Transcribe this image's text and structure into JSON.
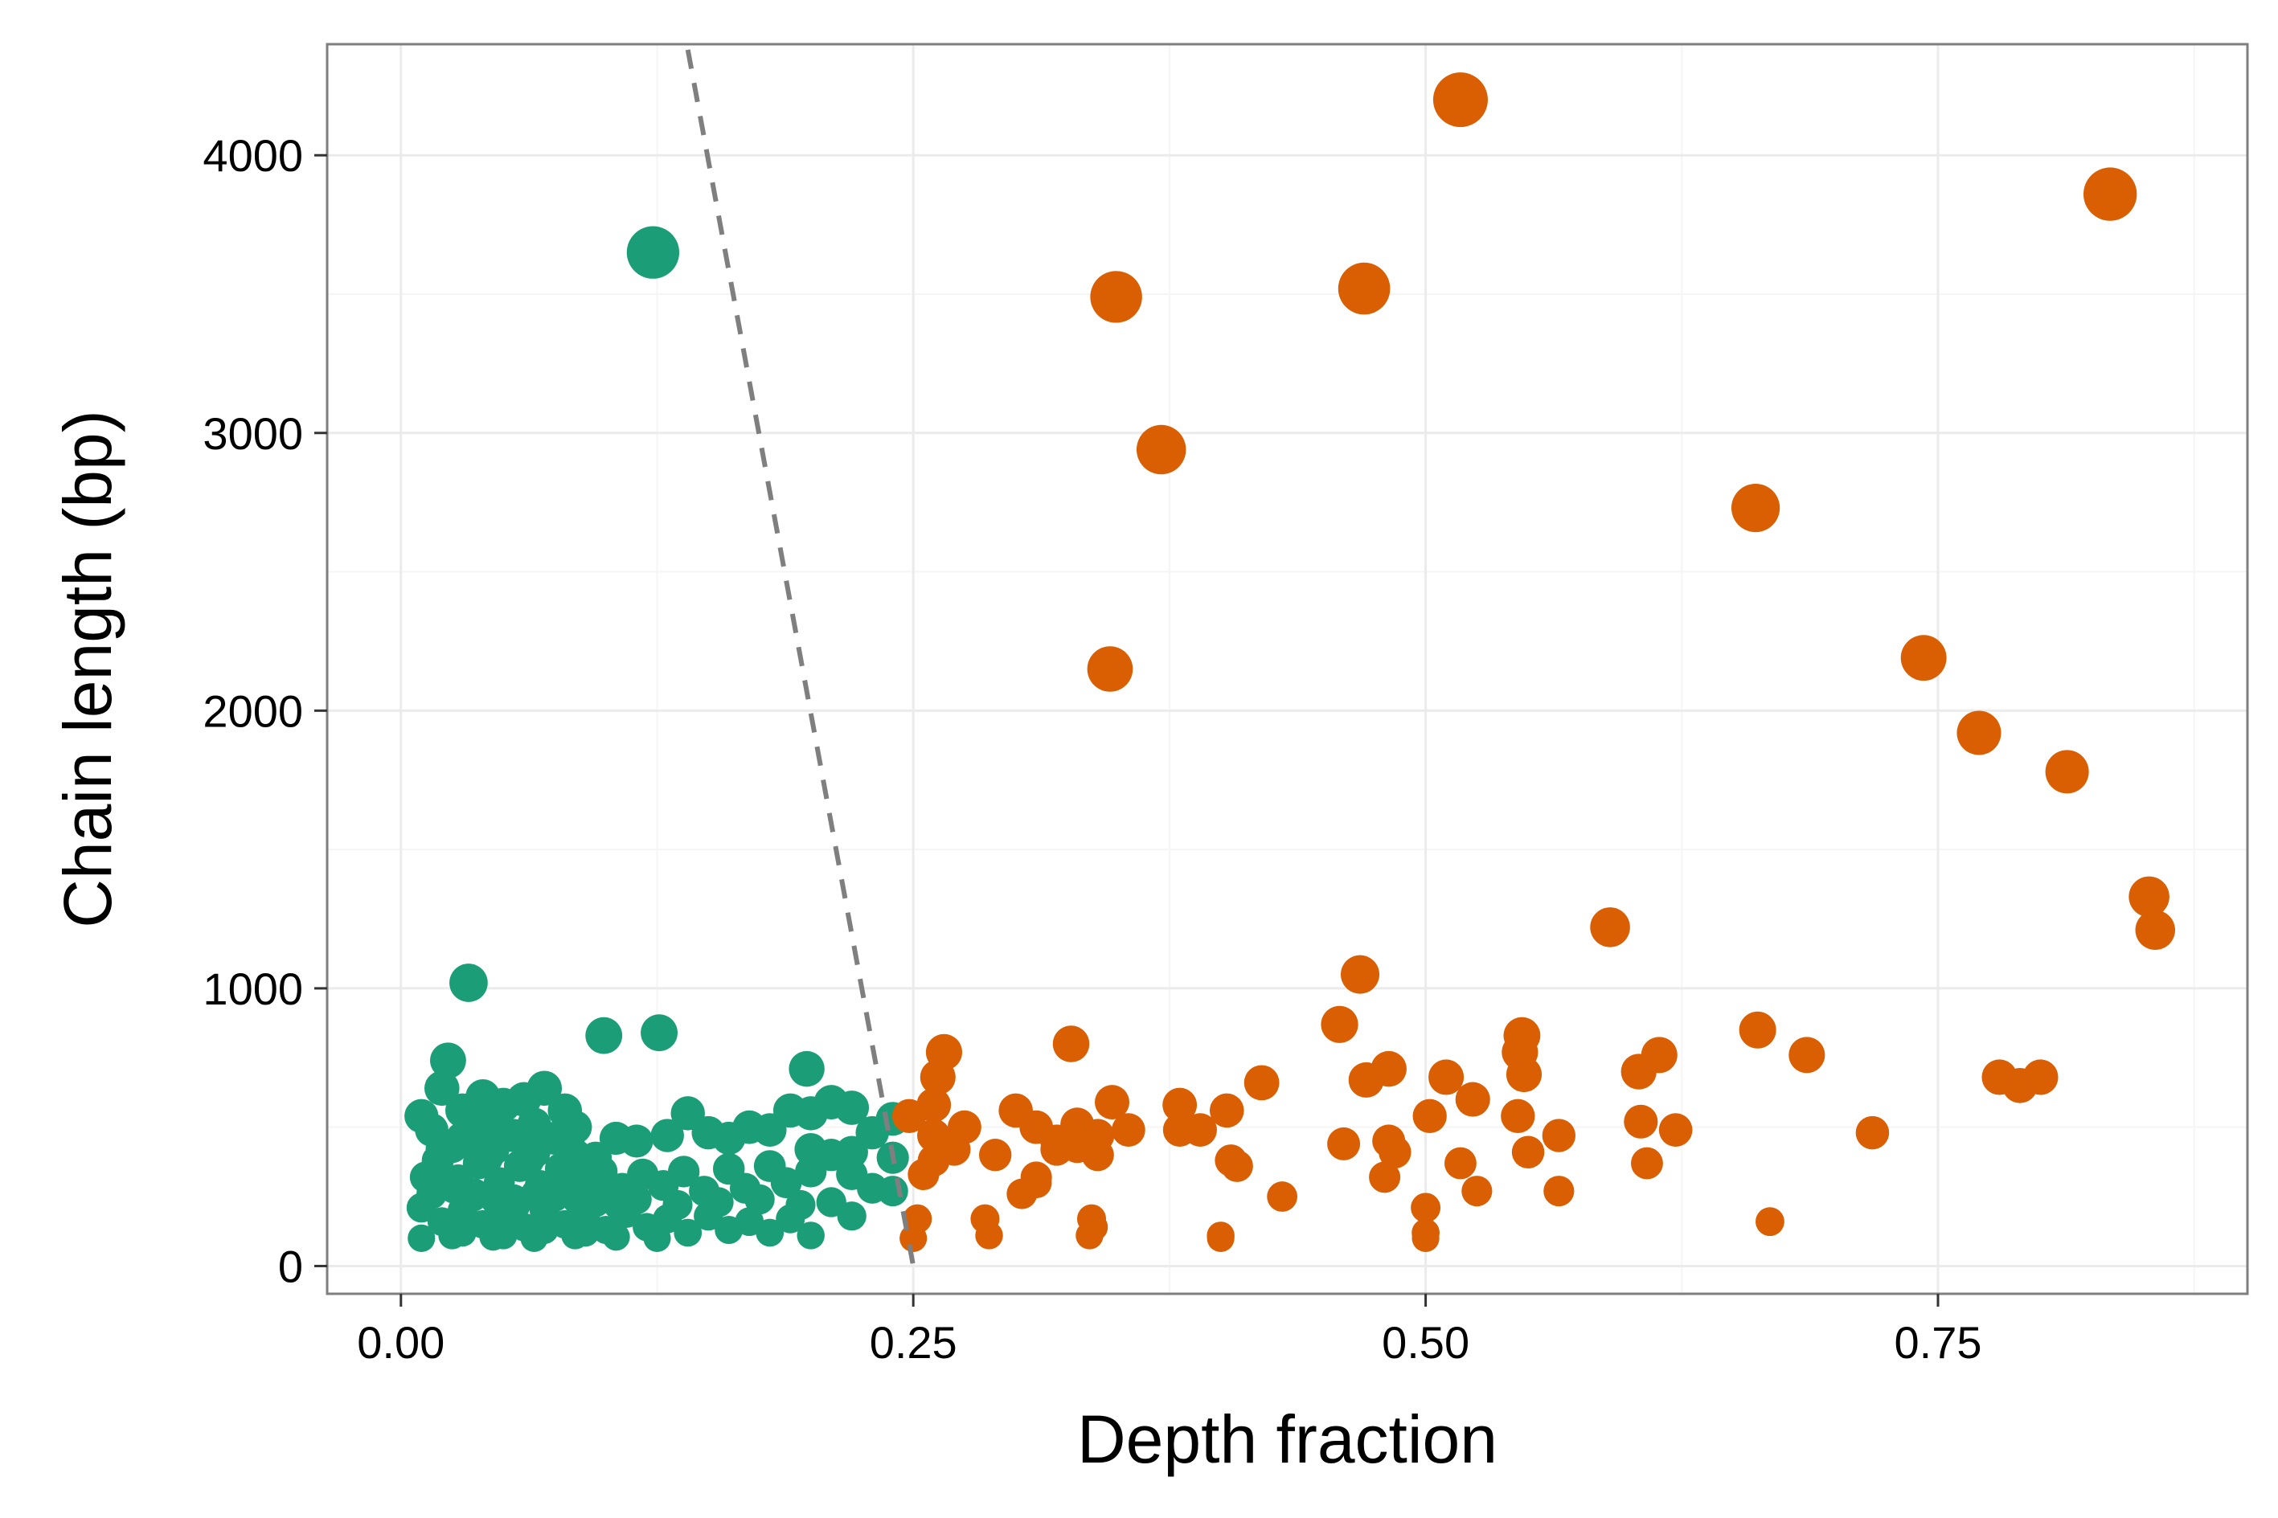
{
  "chart_data": {
    "type": "scatter",
    "xlabel": "Depth fraction",
    "ylabel": "Chain length (bp)",
    "xlim": [
      -0.036,
      0.901
    ],
    "ylim": [
      -100,
      4400
    ],
    "x_ticks": [
      0.0,
      0.25,
      0.5,
      0.75
    ],
    "x_tick_labels": [
      "0.00",
      "0.25",
      "0.50",
      "0.75"
    ],
    "y_ticks": [
      0,
      1000,
      2000,
      3000,
      4000
    ],
    "y_tick_labels": [
      "0",
      "1000",
      "2000",
      "3000",
      "4000"
    ],
    "grid": true,
    "legend": "none",
    "colors": {
      "group_low": "#1b9e77",
      "group_high": "#d95f02",
      "threshold_line": "#7f7f7f",
      "panel_border": "#7f7f7f",
      "grid_major": "#ebebeb",
      "grid_minor": "#f5f5f5"
    },
    "threshold_line": {
      "x": [
        0.14,
        0.25
      ],
      "y": [
        4380,
        0
      ],
      "style": "dashed"
    },
    "series": [
      {
        "color": "#1b9e77",
        "points": [
          [
            0.123,
            3650
          ],
          [
            0.033,
            1020
          ],
          [
            0.099,
            830
          ],
          [
            0.126,
            840
          ],
          [
            0.023,
            740
          ],
          [
            0.198,
            710
          ],
          [
            0.07,
            640
          ],
          [
            0.02,
            640
          ],
          [
            0.04,
            610
          ],
          [
            0.06,
            600
          ],
          [
            0.05,
            580
          ],
          [
            0.08,
            560
          ],
          [
            0.03,
            560
          ],
          [
            0.01,
            540
          ],
          [
            0.14,
            550
          ],
          [
            0.19,
            560
          ],
          [
            0.2,
            550
          ],
          [
            0.21,
            590
          ],
          [
            0.22,
            570
          ],
          [
            0.24,
            530
          ],
          [
            0.045,
            520
          ],
          [
            0.065,
            510
          ],
          [
            0.085,
            500
          ],
          [
            0.015,
            490
          ],
          [
            0.035,
            480
          ],
          [
            0.055,
            470
          ],
          [
            0.075,
            460
          ],
          [
            0.17,
            500
          ],
          [
            0.18,
            490
          ],
          [
            0.23,
            480
          ],
          [
            0.105,
            460
          ],
          [
            0.115,
            450
          ],
          [
            0.13,
            470
          ],
          [
            0.15,
            480
          ],
          [
            0.16,
            460
          ],
          [
            0.025,
            430
          ],
          [
            0.045,
            420
          ],
          [
            0.065,
            410
          ],
          [
            0.085,
            400
          ],
          [
            0.095,
            390
          ],
          [
            0.2,
            420
          ],
          [
            0.21,
            400
          ],
          [
            0.22,
            410
          ],
          [
            0.24,
            390
          ],
          [
            0.018,
            380
          ],
          [
            0.038,
            370
          ],
          [
            0.058,
            360
          ],
          [
            0.078,
            350
          ],
          [
            0.098,
            340
          ],
          [
            0.118,
            330
          ],
          [
            0.138,
            340
          ],
          [
            0.16,
            350
          ],
          [
            0.18,
            360
          ],
          [
            0.2,
            340
          ],
          [
            0.22,
            330
          ],
          [
            0.012,
            320
          ],
          [
            0.028,
            310
          ],
          [
            0.048,
            300
          ],
          [
            0.068,
            290
          ],
          [
            0.088,
            300
          ],
          [
            0.108,
            280
          ],
          [
            0.128,
            290
          ],
          [
            0.148,
            270
          ],
          [
            0.168,
            280
          ],
          [
            0.188,
            300
          ],
          [
            0.23,
            280
          ],
          [
            0.24,
            270
          ],
          [
            0.015,
            260
          ],
          [
            0.035,
            250
          ],
          [
            0.055,
            240
          ],
          [
            0.075,
            250
          ],
          [
            0.095,
            230
          ],
          [
            0.115,
            240
          ],
          [
            0.135,
            220
          ],
          [
            0.155,
            230
          ],
          [
            0.175,
            240
          ],
          [
            0.195,
            220
          ],
          [
            0.21,
            230
          ],
          [
            0.01,
            210
          ],
          [
            0.03,
            200
          ],
          [
            0.05,
            190
          ],
          [
            0.07,
            200
          ],
          [
            0.09,
            180
          ],
          [
            0.11,
            190
          ],
          [
            0.13,
            170
          ],
          [
            0.15,
            180
          ],
          [
            0.17,
            160
          ],
          [
            0.19,
            170
          ],
          [
            0.22,
            180
          ],
          [
            0.02,
            160
          ],
          [
            0.04,
            150
          ],
          [
            0.06,
            140
          ],
          [
            0.08,
            150
          ],
          [
            0.1,
            130
          ],
          [
            0.12,
            140
          ],
          [
            0.14,
            120
          ],
          [
            0.16,
            130
          ],
          [
            0.18,
            120
          ],
          [
            0.2,
            110
          ],
          [
            0.025,
            110
          ],
          [
            0.045,
            105
          ],
          [
            0.065,
            100
          ],
          [
            0.085,
            110
          ],
          [
            0.105,
            105
          ],
          [
            0.125,
            100
          ],
          [
            0.01,
            100
          ],
          [
            0.03,
            120
          ],
          [
            0.05,
            110
          ],
          [
            0.07,
            130
          ],
          [
            0.09,
            120
          ],
          [
            0.016,
            300
          ],
          [
            0.026,
            280
          ],
          [
            0.036,
            260
          ],
          [
            0.046,
            240
          ],
          [
            0.056,
            220
          ],
          [
            0.066,
            260
          ],
          [
            0.076,
            280
          ],
          [
            0.086,
            240
          ],
          [
            0.096,
            260
          ],
          [
            0.106,
            220
          ],
          [
            0.02,
            420
          ],
          [
            0.042,
            390
          ],
          [
            0.062,
            380
          ],
          [
            0.082,
            430
          ],
          [
            0.03,
            460
          ]
        ]
      },
      {
        "color": "#d95f02",
        "points": [
          [
            0.517,
            4200
          ],
          [
            0.834,
            3860
          ],
          [
            0.349,
            3490
          ],
          [
            0.47,
            3520
          ],
          [
            0.371,
            2940
          ],
          [
            0.661,
            2730
          ],
          [
            0.346,
            2150
          ],
          [
            0.743,
            2190
          ],
          [
            0.77,
            1920
          ],
          [
            0.813,
            1780
          ],
          [
            0.853,
            1330
          ],
          [
            0.856,
            1210
          ],
          [
            0.59,
            1220
          ],
          [
            0.468,
            1050
          ],
          [
            0.458,
            870
          ],
          [
            0.662,
            850
          ],
          [
            0.686,
            760
          ],
          [
            0.547,
            830
          ],
          [
            0.546,
            770
          ],
          [
            0.548,
            690
          ],
          [
            0.614,
            760
          ],
          [
            0.604,
            700
          ],
          [
            0.327,
            800
          ],
          [
            0.265,
            770
          ],
          [
            0.262,
            680
          ],
          [
            0.482,
            710
          ],
          [
            0.471,
            670
          ],
          [
            0.51,
            680
          ],
          [
            0.347,
            590
          ],
          [
            0.38,
            580
          ],
          [
            0.42,
            660
          ],
          [
            0.403,
            560
          ],
          [
            0.26,
            580
          ],
          [
            0.248,
            540
          ],
          [
            0.3,
            560
          ],
          [
            0.31,
            500
          ],
          [
            0.32,
            450
          ],
          [
            0.33,
            510
          ],
          [
            0.34,
            470
          ],
          [
            0.355,
            490
          ],
          [
            0.275,
            500
          ],
          [
            0.29,
            400
          ],
          [
            0.605,
            520
          ],
          [
            0.622,
            490
          ],
          [
            0.545,
            540
          ],
          [
            0.565,
            470
          ],
          [
            0.55,
            410
          ],
          [
            0.523,
            600
          ],
          [
            0.502,
            540
          ],
          [
            0.718,
            480
          ],
          [
            0.78,
            680
          ],
          [
            0.79,
            650
          ],
          [
            0.8,
            680
          ],
          [
            0.46,
            440
          ],
          [
            0.482,
            450
          ],
          [
            0.485,
            410
          ],
          [
            0.48,
            320
          ],
          [
            0.517,
            370
          ],
          [
            0.525,
            270
          ],
          [
            0.565,
            270
          ],
          [
            0.608,
            370
          ],
          [
            0.43,
            250
          ],
          [
            0.405,
            380
          ],
          [
            0.408,
            360
          ],
          [
            0.38,
            490
          ],
          [
            0.39,
            490
          ],
          [
            0.303,
            260
          ],
          [
            0.31,
            320
          ],
          [
            0.255,
            330
          ],
          [
            0.26,
            470
          ],
          [
            0.27,
            420
          ],
          [
            0.34,
            400
          ],
          [
            0.32,
            420
          ],
          [
            0.33,
            430
          ],
          [
            0.5,
            210
          ],
          [
            0.5,
            120
          ],
          [
            0.5,
            100
          ],
          [
            0.337,
            170
          ],
          [
            0.338,
            140
          ],
          [
            0.336,
            110
          ],
          [
            0.4,
            110
          ],
          [
            0.4,
            100
          ],
          [
            0.285,
            170
          ],
          [
            0.287,
            110
          ],
          [
            0.252,
            170
          ],
          [
            0.25,
            100
          ],
          [
            0.668,
            160
          ],
          [
            0.26,
            380
          ],
          [
            0.31,
            300
          ]
        ]
      }
    ]
  }
}
